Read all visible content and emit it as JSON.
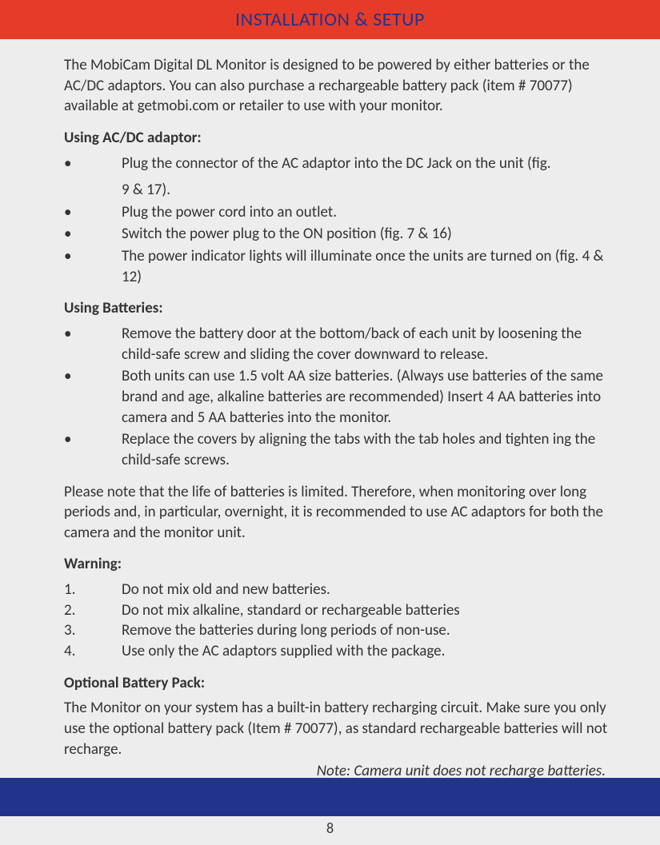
{
  "header": {
    "title": "INSTALLATION & SETUP"
  },
  "intro": "The MobiCam Digital DL Monitor is designed to be powered by either batteries or the AC/DC adaptors. You can also purchase a rechargeable battery pack (item # 70077) available at getmobi.com or retailer to use with your monitor.",
  "sections": {
    "acdc": {
      "heading": "Using AC/DC adaptor:",
      "items": [
        "Plug the connector of the AC adaptor into the DC Jack on the unit (fig.",
        "9 & 17).",
        "Plug the power cord into an outlet.",
        "Switch the power plug to the ON position (fig. 7 & 16)",
        "The power indicator lights will illuminate once the units are turned on (fig. 4 & 12)"
      ]
    },
    "batteries": {
      "heading": "Using Batteries:",
      "items": [
        "Remove the battery door at the bottom/back of each unit by loosening the child-safe screw and sliding the cover downward to release.",
        "Both units can use 1.5 volt AA size batteries. (Always use batteries of the same brand and age, alkaline batteries are recommended) Insert 4 AA batteries into camera and 5 AA batteries into the monitor.",
        "Replace the covers by aligning the tabs with the tab holes and tighten ing the child-safe screws."
      ]
    },
    "note": "Please note that the life of batteries is limited. Therefore, when monitoring over long periods and, in particular, overnight, it is recommended to use AC adaptors for both the camera and the monitor unit.",
    "warning": {
      "heading": "Warning:",
      "items": [
        "Do not mix old and new batteries.",
        "Do not mix alkaline, standard or rechargeable batteries",
        "Remove the batteries during long periods of non-use.",
        "Use only the AC adaptors supplied with the package."
      ]
    },
    "optional": {
      "heading": "Optional Battery Pack:",
      "body": "The Monitor on your system has a built-in battery recharging circuit. Make sure you only use the optional battery pack (Item # 70077), as standard rechargeable batteries will not recharge.",
      "note": "Note: Camera unit does not recharge batteries."
    }
  },
  "page_number": "8",
  "colors": {
    "header_bg": "#e63b28",
    "header_text": "#22338e",
    "footer_bg": "#22338e",
    "page_bg": "#ededed"
  }
}
